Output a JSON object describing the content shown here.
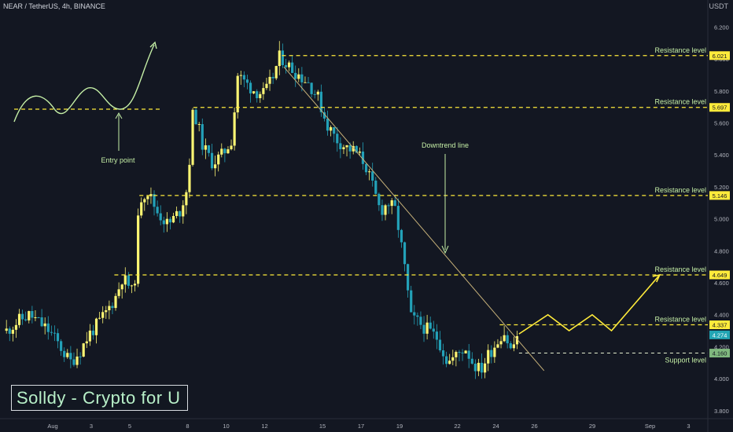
{
  "header": {
    "symbol_line": "NEAR / TetherUS, 4h, BINANCE",
    "unit": "USDT"
  },
  "watermark": "Solldy - Crypto for U",
  "colors": {
    "background": "#131722",
    "bull": "#fcf573",
    "bear": "#23a1b8",
    "level_line": "#ffeb3b",
    "trend_line": "#c8b27a",
    "annotation": "#c5efa6",
    "projection": "#ffeb3b",
    "axis_text": "#b2b5be"
  },
  "annotations": {
    "entry_point": "Entry point",
    "downtrend_line": "Downtrend line"
  },
  "chart_data": {
    "type": "candlestick",
    "y_axis": {
      "min": 3.75,
      "max": 6.3,
      "ticks": [
        "6.200",
        "6.000",
        "5.800",
        "5.600",
        "5.400",
        "5.200",
        "5.000",
        "4.800",
        "4.600",
        "4.400",
        "4.200",
        "4.000",
        "3.800"
      ]
    },
    "x_axis": {
      "ticks": [
        {
          "label": "Aug",
          "day": 1
        },
        {
          "label": "3",
          "day": 3
        },
        {
          "label": "5",
          "day": 5
        },
        {
          "label": "8",
          "day": 8
        },
        {
          "label": "10",
          "day": 10
        },
        {
          "label": "12",
          "day": 12
        },
        {
          "label": "15",
          "day": 15
        },
        {
          "label": "17",
          "day": 17
        },
        {
          "label": "19",
          "day": 19
        },
        {
          "label": "22",
          "day": 22
        },
        {
          "label": "24",
          "day": 24
        },
        {
          "label": "26",
          "day": 26
        },
        {
          "label": "29",
          "day": 29
        },
        {
          "label": "Sep",
          "day": 32
        },
        {
          "label": "3",
          "day": 34
        }
      ]
    },
    "price_path": [
      [
        -1.4,
        4.3
      ],
      [
        -0.8,
        4.36
      ],
      [
        -0.2,
        4.4
      ],
      [
        0.3,
        4.35
      ],
      [
        0.8,
        4.3
      ],
      [
        1.4,
        4.2
      ],
      [
        1.9,
        4.1
      ],
      [
        2.4,
        4.17
      ],
      [
        2.9,
        4.28
      ],
      [
        3.4,
        4.35
      ],
      [
        3.8,
        4.42
      ],
      [
        4.3,
        4.52
      ],
      [
        4.6,
        4.63
      ],
      [
        5.0,
        4.58
      ],
      [
        5.2,
        4.5
      ],
      [
        5.5,
        5.12
      ],
      [
        5.9,
        5.18
      ],
      [
        6.4,
        5.05
      ],
      [
        7.0,
        4.96
      ],
      [
        7.6,
        5.05
      ],
      [
        8.0,
        5.2
      ],
      [
        8.3,
        5.7
      ],
      [
        8.8,
        5.45
      ],
      [
        9.3,
        5.35
      ],
      [
        9.8,
        5.4
      ],
      [
        10.3,
        5.5
      ],
      [
        10.6,
        5.9
      ],
      [
        11.0,
        5.85
      ],
      [
        11.5,
        5.8
      ],
      [
        12.0,
        5.78
      ],
      [
        12.4,
        5.88
      ],
      [
        12.8,
        6.02
      ],
      [
        13.3,
        5.95
      ],
      [
        13.8,
        5.9
      ],
      [
        14.3,
        5.85
      ],
      [
        14.8,
        5.75
      ],
      [
        15.2,
        5.6
      ],
      [
        15.7,
        5.5
      ],
      [
        16.2,
        5.45
      ],
      [
        16.7,
        5.42
      ],
      [
        17.2,
        5.35
      ],
      [
        17.6,
        5.2
      ],
      [
        18.0,
        5.05
      ],
      [
        18.4,
        5.1
      ],
      [
        18.8,
        5.05
      ],
      [
        19.2,
        4.75
      ],
      [
        19.6,
        4.38
      ],
      [
        20.0,
        4.35
      ],
      [
        20.5,
        4.3
      ],
      [
        21.0,
        4.25
      ],
      [
        21.5,
        4.1
      ],
      [
        22.0,
        4.15
      ],
      [
        22.4,
        4.2
      ],
      [
        22.8,
        4.1
      ],
      [
        23.2,
        4.05
      ],
      [
        23.6,
        4.15
      ],
      [
        24.0,
        4.22
      ],
      [
        24.4,
        4.3
      ],
      [
        24.8,
        4.17
      ],
      [
        25.1,
        4.27
      ]
    ],
    "resistance_levels": [
      {
        "value": 6.021,
        "label": "6.021",
        "text": "Resistance level",
        "from_day": 12.9
      },
      {
        "value": 5.697,
        "label": "5.697",
        "text": "Resistance level",
        "from_day": 8.3
      },
      {
        "value": 5.146,
        "label": "5.146",
        "text": "Resistance level",
        "from_day": 5.5
      },
      {
        "value": 4.649,
        "label": "4.649",
        "text": "Resistance level",
        "from_day": 4.2
      },
      {
        "value": 4.337,
        "label": "4.337",
        "text": "Resistance level",
        "from_day": 24.2
      }
    ],
    "support_level": {
      "value": 4.16,
      "label": "4.160",
      "text": "Support level",
      "from_day": 25.2
    },
    "current_price": {
      "value": 4.274,
      "label": "4.274"
    },
    "downtrend_line": [
      [
        13.0,
        5.95
      ],
      [
        26.5,
        4.05
      ]
    ],
    "projection_path": [
      [
        25.2,
        4.28
      ],
      [
        26.7,
        4.4
      ],
      [
        27.8,
        4.3
      ],
      [
        29.0,
        4.4
      ],
      [
        30.0,
        4.3
      ],
      [
        32.5,
        4.649
      ]
    ]
  }
}
